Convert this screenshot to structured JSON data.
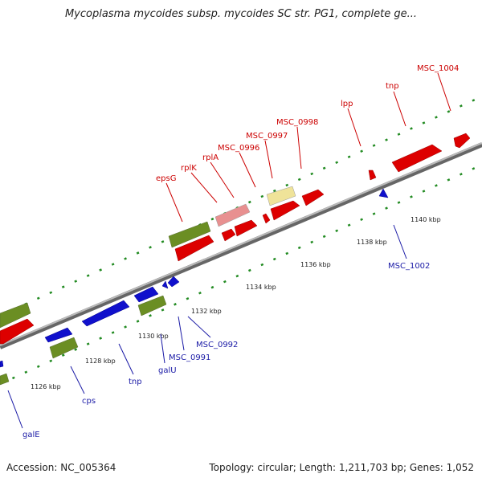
{
  "title": "Mycoplasma mycoides subsp. mycoides SC str. PG1, complete ge...",
  "footer": {
    "accession": "Accession: NC_005364",
    "topology": "Topology: circular; Length: 1,211,703 bp; Genes: 1,052"
  },
  "colors": {
    "forward_cds": "#dd0000",
    "reverse_cds": "#1010cc",
    "rna": "#6b8e23",
    "pseudo": "#e89090",
    "misc": "#efe399",
    "backbone": "#999999",
    "ticks": "#228b22"
  },
  "tick_labels": [
    "1126 kbp",
    "1128 kbp",
    "1130 kbp",
    "1132 kbp",
    "1134 kbp",
    "1136 kbp",
    "1138 kbp",
    "1140 kbp"
  ],
  "forward_labels": [
    "epsG",
    "rplK",
    "rplA",
    "MSC_0996",
    "MSC_0997",
    "MSC_0998",
    "lpp",
    "tnp",
    "MSC_1004"
  ],
  "reverse_labels": [
    "galE",
    "cps",
    "tnp",
    "galU",
    "MSC_0991",
    "MSC_0992",
    "MSC_1002"
  ]
}
